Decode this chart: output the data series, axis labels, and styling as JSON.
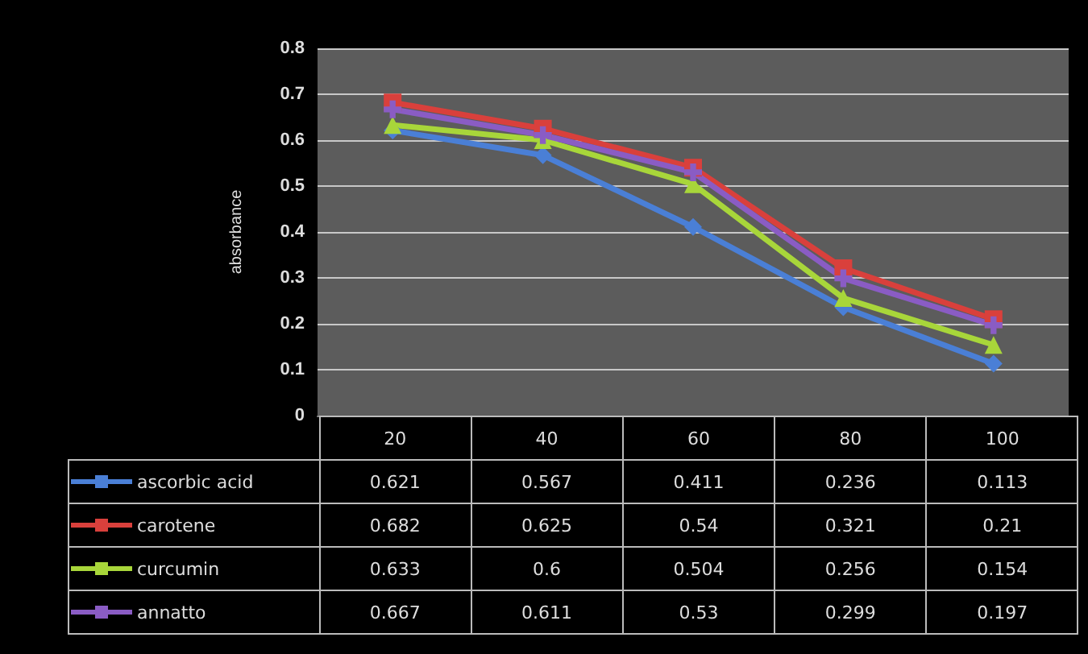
{
  "chart_data": {
    "type": "line",
    "ylabel": "absorbance",
    "categories": [
      "20",
      "40",
      "60",
      "80",
      "100"
    ],
    "series": [
      {
        "name": "ascorbic acid",
        "color": "#4a7fd6",
        "marker": "diamond",
        "values": [
          0.621,
          0.567,
          0.411,
          0.236,
          0.113
        ]
      },
      {
        "name": "carotene",
        "color": "#d9403c",
        "marker": "square",
        "values": [
          0.682,
          0.625,
          0.54,
          0.321,
          0.21
        ]
      },
      {
        "name": "curcumin",
        "color": "#a8d63a",
        "marker": "triangle",
        "values": [
          0.633,
          0.6,
          0.504,
          0.256,
          0.154
        ]
      },
      {
        "name": "annatto",
        "color": "#8a5cc4",
        "marker": "cross",
        "values": [
          0.667,
          0.611,
          0.53,
          0.299,
          0.197
        ]
      }
    ],
    "ylim": [
      0,
      0.8
    ],
    "yticks": [
      0,
      0.1,
      0.2,
      0.3,
      0.4,
      0.5,
      0.6,
      0.7,
      0.8
    ],
    "grid": "y",
    "legend": "bottom left",
    "data_labels": true
  }
}
